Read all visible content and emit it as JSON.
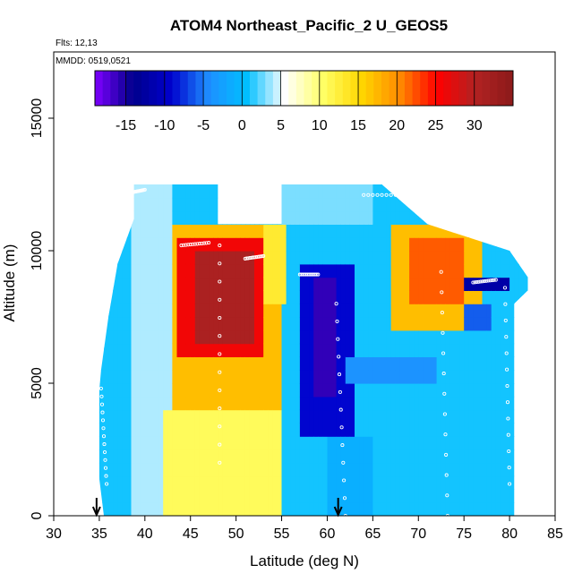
{
  "chart_data": {
    "type": "heatmap",
    "title": "ATOM4 Northeast_Pacific_2 U_GEOS5",
    "notes": [
      "Flts: 12,13",
      "MMDD: 0519,0521"
    ],
    "xlabel": "Latitude (deg N)",
    "ylabel": "Altitude (m)",
    "xlim": [
      30,
      85
    ],
    "ylim": [
      0,
      17500
    ],
    "x_ticks": [
      "30",
      "35",
      "40",
      "45",
      "50",
      "55",
      "60",
      "65",
      "70",
      "75",
      "80",
      "85"
    ],
    "y_ticks": [
      "0",
      "5000",
      "10000",
      "15000"
    ],
    "colorbar": {
      "range": [
        -19,
        35
      ],
      "ticks": [
        "-15",
        "-10",
        "-5",
        "0",
        "5",
        "10",
        "15",
        "20",
        "25",
        "30"
      ],
      "colors": [
        "#7f00ff",
        "#00008b",
        "#0000cd",
        "#1e90ff",
        "#00bfff",
        "#ffffff",
        "#ffff66",
        "#ffd700",
        "#ff8c00",
        "#ff0000",
        "#b22222",
        "#8b1a1a"
      ]
    },
    "arrows_at_latitude": [
      34.7,
      61.2
    ],
    "regions": [
      {
        "lat": [
          35,
          82
        ],
        "alt": [
          0,
          12500
        ],
        "value": 1
      },
      {
        "lat": [
          38.5,
          43
        ],
        "alt": [
          0,
          12500
        ],
        "value": 4
      },
      {
        "lat": [
          42,
          55
        ],
        "alt": [
          0,
          4200
        ],
        "value": 11
      },
      {
        "lat": [
          42,
          55
        ],
        "alt": [
          4200,
          11000
        ],
        "value": 17
      },
      {
        "lat": [
          43.5,
          53
        ],
        "alt": [
          6000,
          10500
        ],
        "value": 26
      },
      {
        "lat": [
          45.5,
          52
        ],
        "alt": [
          6500,
          10000
        ],
        "value": 31
      },
      {
        "lat": [
          53,
          55.5
        ],
        "alt": [
          8000,
          11000
        ],
        "value": 13
      },
      {
        "lat": [
          55,
          65
        ],
        "alt": [
          11000,
          12500
        ],
        "value": 3
      },
      {
        "lat": [
          57,
          63
        ],
        "alt": [
          2900,
          9500
        ],
        "value": -9
      },
      {
        "lat": [
          58.5,
          61
        ],
        "alt": [
          4500,
          9000
        ],
        "value": -16
      },
      {
        "lat": [
          60,
          65
        ],
        "alt": [
          0,
          3200
        ],
        "value": -1
      },
      {
        "lat": [
          62,
          72
        ],
        "alt": [
          5000,
          6000
        ],
        "value": -4
      },
      {
        "lat": [
          67,
          77
        ],
        "alt": [
          7000,
          11000
        ],
        "value": 17
      },
      {
        "lat": [
          69,
          75
        ],
        "alt": [
          8000,
          10500
        ],
        "value": 22
      },
      {
        "lat": [
          75,
          80
        ],
        "alt": [
          8500,
          9200
        ],
        "value": -12
      },
      {
        "lat": [
          75,
          78
        ],
        "alt": [
          7000,
          8000
        ],
        "value": -6
      }
    ]
  }
}
